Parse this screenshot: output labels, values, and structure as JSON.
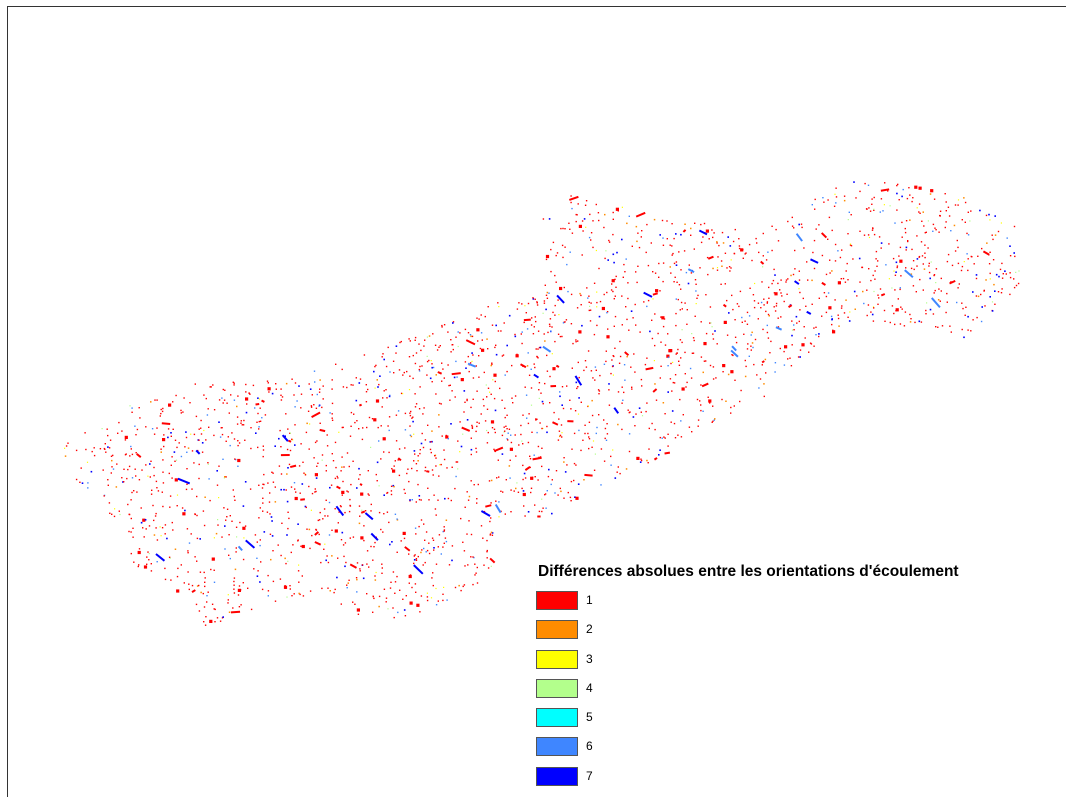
{
  "legend": {
    "title": "Différences absolues entre les orientations d'écoulement",
    "items": [
      {
        "label": "1",
        "color": "#ff0000"
      },
      {
        "label": "2",
        "color": "#ff8c00"
      },
      {
        "label": "3",
        "color": "#ffff00"
      },
      {
        "label": "4",
        "color": "#b3ff8c"
      },
      {
        "label": "5",
        "color": "#00ffff"
      },
      {
        "label": "6",
        "color": "#3f86ff"
      },
      {
        "label": "7",
        "color": "#0000ff"
      }
    ]
  }
}
